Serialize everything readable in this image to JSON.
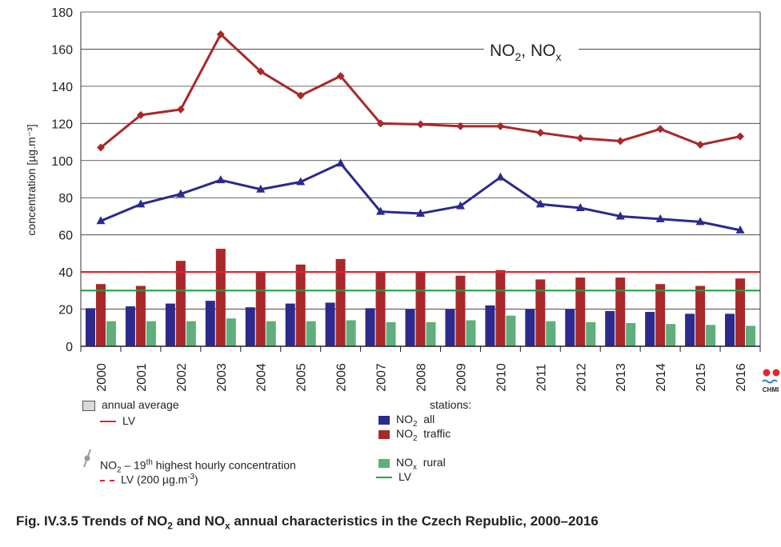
{
  "chart_data": {
    "type": "bar",
    "title": "NO₂, NOₓ",
    "ylabel": "concentration [µg.m⁻³]",
    "ylim": [
      0,
      180
    ],
    "yticks": [
      0,
      20,
      40,
      60,
      80,
      100,
      120,
      140,
      160,
      180
    ],
    "grid": true,
    "categories": [
      "2000",
      "2001",
      "2002",
      "2003",
      "2004",
      "2005",
      "2006",
      "2007",
      "2008",
      "2009",
      "2010",
      "2011",
      "2012",
      "2013",
      "2014",
      "2015",
      "2016"
    ],
    "bar_series": [
      {
        "name": "NO₂ all",
        "color": "#2c2a8c",
        "values": [
          20.5,
          21.5,
          23,
          24.5,
          21,
          23,
          23.5,
          20.5,
          20,
          20,
          22,
          20,
          20,
          19,
          18.5,
          17.5,
          17.5
        ]
      },
      {
        "name": "NO₂ traffic",
        "color": "#a8282b",
        "values": [
          33.5,
          32.5,
          46,
          52.5,
          40.5,
          44,
          47,
          40.5,
          40.5,
          38,
          41,
          36,
          37,
          37,
          33.5,
          32.5,
          36.5
        ]
      },
      {
        "name": "NOₓ rural",
        "color": "#5fae7c",
        "values": [
          13.5,
          13.5,
          13.5,
          15,
          13.5,
          13.5,
          14,
          13,
          13,
          14,
          16.5,
          13.5,
          13,
          12.5,
          12,
          11.5,
          11
        ]
      }
    ],
    "line_series": [
      {
        "name": "traffic annual average (diamonds)",
        "color": "#a8282b",
        "marker": "diamond",
        "values": [
          107,
          124.5,
          127.5,
          168,
          148,
          135,
          145.5,
          120,
          119.5,
          118.5,
          118.5,
          115,
          112,
          110.5,
          117,
          108.5,
          113
        ]
      },
      {
        "name": "all annual average (triangles)",
        "color": "#2c2a8c",
        "marker": "triangle",
        "values": [
          67.5,
          76.5,
          82,
          89.5,
          84.5,
          88.5,
          98.5,
          72.5,
          71.5,
          75.5,
          91,
          76.5,
          74.5,
          70,
          68.5,
          67,
          62.5
        ]
      }
    ],
    "reference_lines": [
      {
        "name": "LV",
        "value": 40,
        "color": "#e3262d"
      },
      {
        "name": "LV",
        "value": 30,
        "color": "#23a243"
      }
    ]
  },
  "logo": {
    "text": "CHMI"
  },
  "legend": {
    "annual_average": "annual average",
    "lv_red": "LV",
    "stations_header": "stations:",
    "no2_prefix": "NO",
    "no2_sub": "2",
    "all_label": "all",
    "traffic_label": "traffic",
    "hourly_prefix": "NO",
    "hourly_sub": "2",
    "hourly_mid": " – 19",
    "hourly_sup": "th",
    "hourly_rest": " highest hourly concentration",
    "lv_200": "LV (200 µg.m",
    "lv_200_sup": "-3",
    "lv_200_end": ")",
    "nox_prefix": "NO",
    "nox_sub": "x",
    "rural_label": "rural",
    "lv_green": "LV",
    "colors": {
      "annual_average": "#d9d9d9",
      "lv_red": "#e3262d",
      "no2_all": "#2c2a8c",
      "no2_traffic": "#a8282b",
      "hourly": "#9a9a9a",
      "lv_200": "#e3262d",
      "nox_rural": "#5fae7c",
      "lv_green": "#23a243"
    }
  },
  "caption": {
    "a": "Fig. IV.3.5  Trends of NO",
    "sub1": "2",
    "b": " and NO",
    "sub2": "x",
    "c": " annual characteristics in the Czech Republic, 2000–2016"
  }
}
